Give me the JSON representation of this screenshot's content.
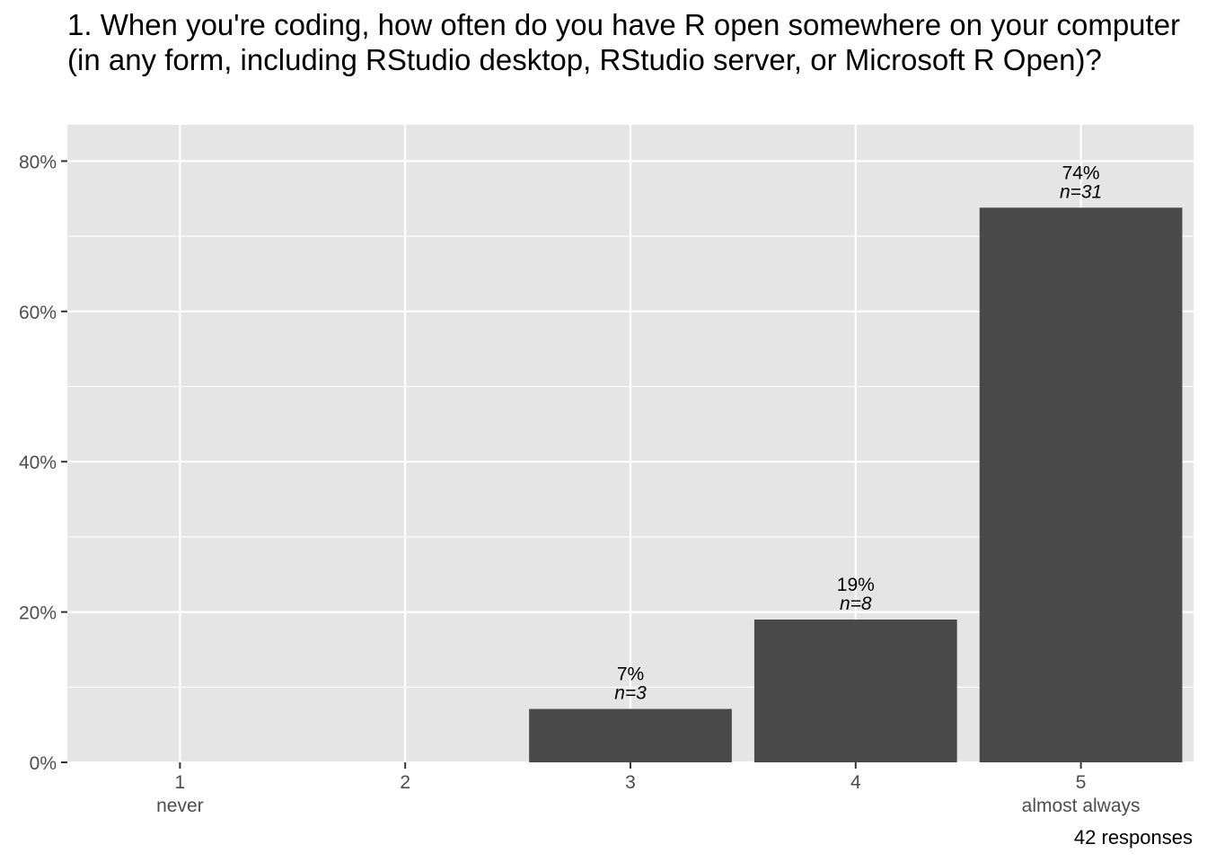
{
  "chart_data": {
    "type": "bar",
    "title": "1. When you're coding, how often do you have R open somewhere on your computer (in any form, including RStudio desktop, RStudio server, or Microsoft R Open)?",
    "xlabel": "",
    "ylabel": "",
    "categories": [
      "1",
      "2",
      "3",
      "4",
      "5"
    ],
    "category_sublabels": [
      "never",
      "",
      "",
      "",
      "almost always"
    ],
    "values": [
      0,
      0,
      7.1,
      19.0,
      73.8
    ],
    "counts": [
      0,
      0,
      3,
      8,
      31
    ],
    "data_labels": [
      "",
      "",
      "7%",
      "19%",
      "74%"
    ],
    "count_labels": [
      "",
      "",
      "n=3",
      "n=8",
      "n=31"
    ],
    "ylim": [
      0,
      85
    ],
    "y_ticks": [
      0,
      20,
      40,
      60,
      80
    ],
    "y_tick_labels": [
      "0%",
      "20%",
      "40%",
      "60%",
      "80%"
    ],
    "grid": true,
    "caption": "42 responses",
    "colors": {
      "bar": "#494949",
      "panel": "#e5e5e5",
      "grid": "#ffffff",
      "tick_text": "#4d4d4d"
    }
  }
}
